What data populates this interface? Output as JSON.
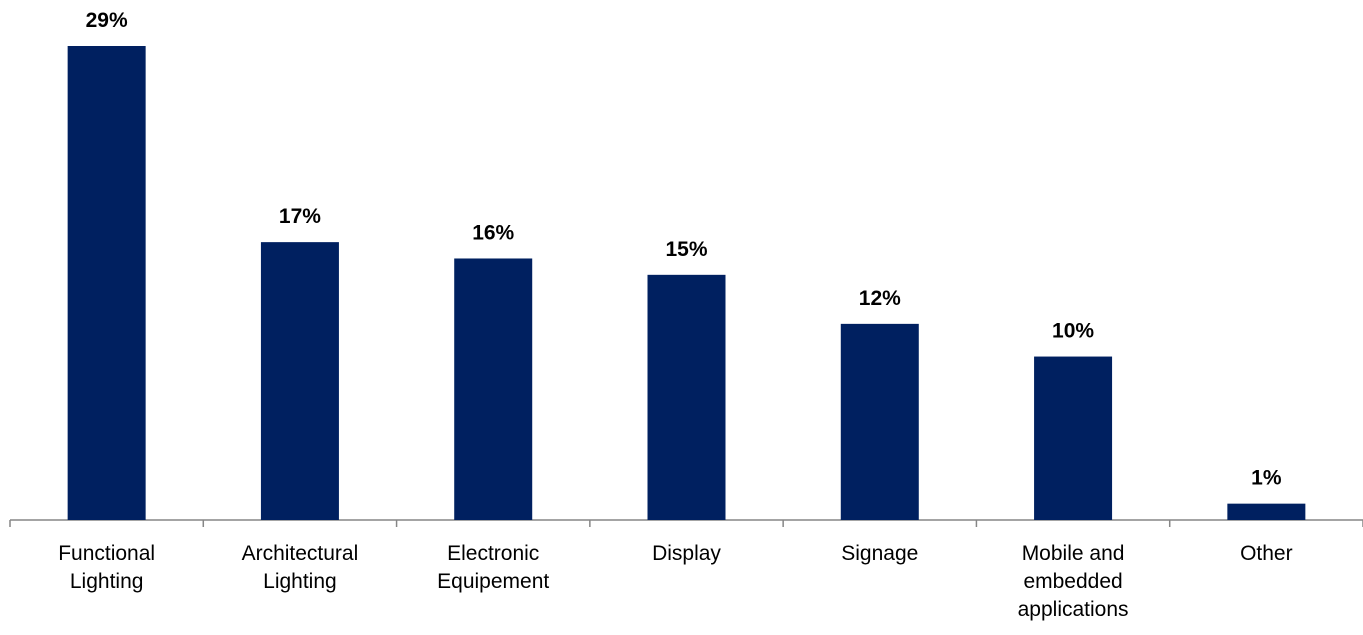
{
  "chart_data": {
    "type": "bar",
    "categories": [
      "Functional Lighting",
      "Architectural Lighting",
      "Electronic Equipement",
      "Display",
      "Signage",
      "Mobile and embedded applications",
      "Other"
    ],
    "values": [
      29,
      17,
      16,
      15,
      12,
      10,
      1
    ],
    "value_labels": [
      "29%",
      "17%",
      "16%",
      "15%",
      "12%",
      "10%",
      "1%"
    ],
    "color": "#002060"
  }
}
